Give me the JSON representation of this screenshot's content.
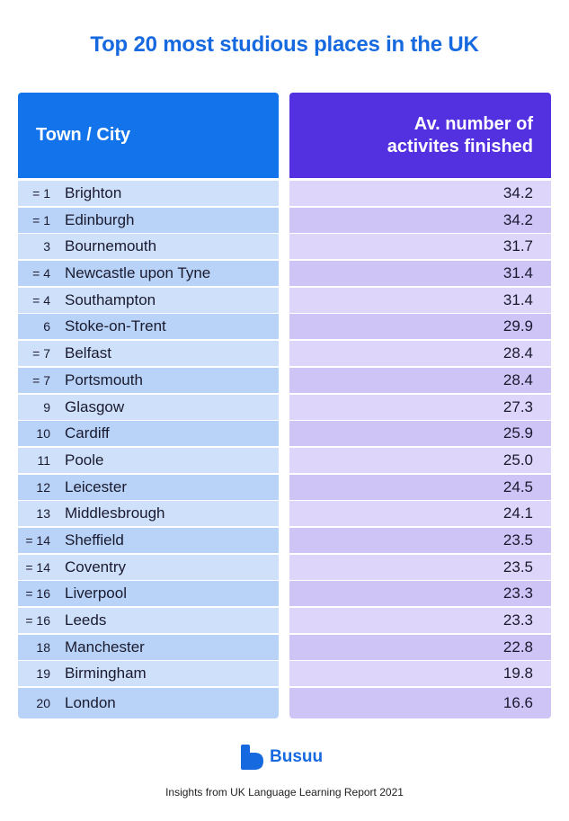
{
  "title": "Top 20 most studious places in the UK",
  "chart_data": {
    "type": "table",
    "columns": [
      "Town / City",
      "Av. number of activites finished"
    ],
    "header_right_lines": [
      "Av. number of",
      "activites finished"
    ],
    "rows": [
      {
        "rank": "= 1",
        "city": "Brighton",
        "value": "34.2"
      },
      {
        "rank": "= 1",
        "city": "Edinburgh",
        "value": "34.2"
      },
      {
        "rank": "3",
        "city": "Bournemouth",
        "value": "31.7"
      },
      {
        "rank": "= 4",
        "city": "Newcastle upon Tyne",
        "value": "31.4"
      },
      {
        "rank": "= 4",
        "city": "Southampton",
        "value": "31.4"
      },
      {
        "rank": "6",
        "city": "Stoke-on-Trent",
        "value": "29.9"
      },
      {
        "rank": "= 7",
        "city": "Belfast",
        "value": "28.4"
      },
      {
        "rank": "= 7",
        "city": "Portsmouth",
        "value": "28.4"
      },
      {
        "rank": "9",
        "city": "Glasgow",
        "value": "27.3"
      },
      {
        "rank": "10",
        "city": "Cardiff",
        "value": "25.9"
      },
      {
        "rank": "11",
        "city": "Poole",
        "value": "25.0"
      },
      {
        "rank": "12",
        "city": "Leicester",
        "value": "24.5"
      },
      {
        "rank": "13",
        "city": "Middlesbrough",
        "value": "24.1"
      },
      {
        "rank": "= 14",
        "city": "Sheffield",
        "value": "23.5"
      },
      {
        "rank": "= 14",
        "city": "Coventry",
        "value": "23.5"
      },
      {
        "rank": "= 16",
        "city": "Liverpool",
        "value": "23.3"
      },
      {
        "rank": "= 16",
        "city": "Leeds",
        "value": "23.3"
      },
      {
        "rank": "18",
        "city": "Manchester",
        "value": "22.8"
      },
      {
        "rank": "19",
        "city": "Birmingham",
        "value": "19.8"
      },
      {
        "rank": "20",
        "city": "London",
        "value": "16.6"
      }
    ]
  },
  "brand": {
    "name": "Busuu",
    "icon": "busuu-logo-icon"
  },
  "footer": "Insights from UK Language Learning Report 2021",
  "colors": {
    "title": "#1769e0",
    "header_left": "#1273eb",
    "header_right": "#5331e0"
  }
}
